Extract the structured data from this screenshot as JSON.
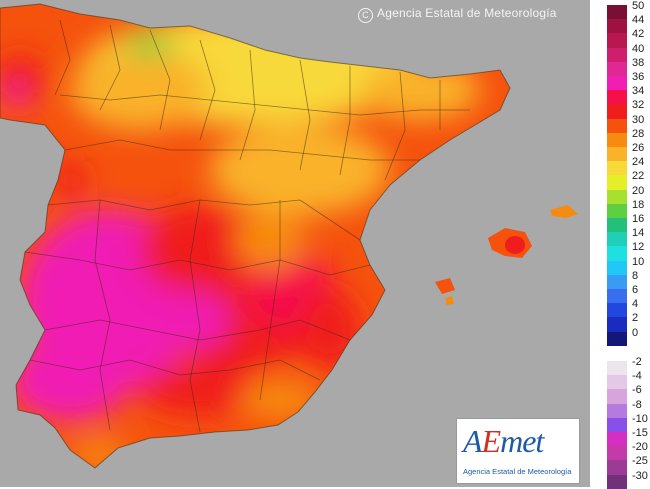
{
  "copyright": {
    "symbol": "C",
    "text": "Agencia Estatal de Meteorología"
  },
  "logo": {
    "mark_a": "A",
    "mark_e": "E",
    "mark_rest": "met",
    "subtitle": "Agencia Estatal de Meteorología"
  },
  "legend_positive": [
    {
      "label": "50",
      "color": "#7a0f33"
    },
    {
      "label": "44",
      "color": "#9e1140"
    },
    {
      "label": "42",
      "color": "#b8174f"
    },
    {
      "label": "40",
      "color": "#cf1e6e"
    },
    {
      "label": "38",
      "color": "#e02793"
    },
    {
      "label": "36",
      "color": "#f01eb3"
    },
    {
      "label": "34",
      "color": "#f5104a"
    },
    {
      "label": "32",
      "color": "#f01d1d"
    },
    {
      "label": "30",
      "color": "#f5520e"
    },
    {
      "label": "28",
      "color": "#f78a10"
    },
    {
      "label": "26",
      "color": "#f9b22a"
    },
    {
      "label": "24",
      "color": "#f8d93a"
    },
    {
      "label": "22",
      "color": "#e4ef2a"
    },
    {
      "label": "20",
      "color": "#a8e030"
    },
    {
      "label": "18",
      "color": "#5cd040"
    },
    {
      "label": "16",
      "color": "#22c07a"
    },
    {
      "label": "14",
      "color": "#1fd0b8"
    },
    {
      "label": "12",
      "color": "#1ee0e0"
    },
    {
      "label": "10",
      "color": "#20c8f5"
    },
    {
      "label": "8",
      "color": "#3a9bf5"
    },
    {
      "label": "6",
      "color": "#3a6ef0"
    },
    {
      "label": "4",
      "color": "#2246e0"
    },
    {
      "label": "2",
      "color": "#1a2bbf"
    },
    {
      "label": "0",
      "color": "#14177a"
    }
  ],
  "legend_negative": [
    {
      "label": "-2",
      "color": "#eee4ee"
    },
    {
      "label": "-4",
      "color": "#e4c9e6"
    },
    {
      "label": "-6",
      "color": "#d8a4dc"
    },
    {
      "label": "-8",
      "color": "#b57ae0"
    },
    {
      "label": "-10",
      "color": "#8a4fe8"
    },
    {
      "label": "-15",
      "color": "#d62ec0"
    },
    {
      "label": "-20",
      "color": "#c33aa8"
    },
    {
      "label": "-25",
      "color": "#9c3b95"
    },
    {
      "label": "-30",
      "color": "#72307a"
    }
  ]
}
